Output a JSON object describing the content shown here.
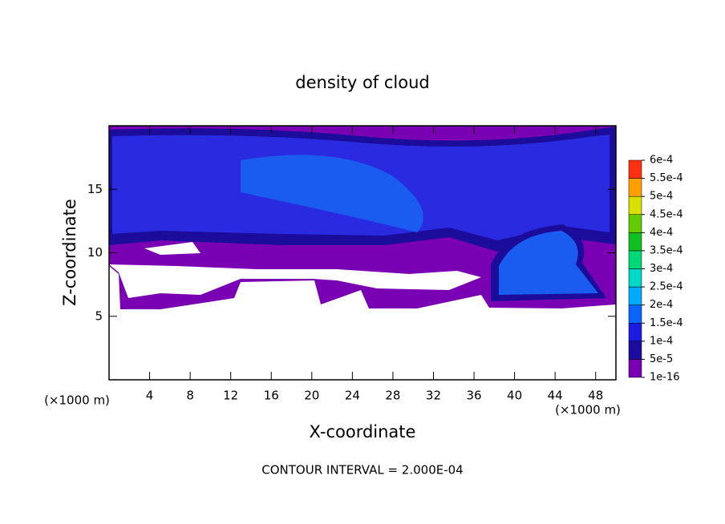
{
  "chart_data": {
    "type": "contour",
    "title": "density of cloud",
    "x_label": "X-coordinate",
    "y_label": "Z-coordinate",
    "x_unit_label": "(×1000 m)",
    "y_unit_label": "(×1000 m)",
    "annotation": "CONTOUR INTERVAL = 2.000E-04",
    "xlim": [
      0,
      50
    ],
    "ylim": [
      0,
      20
    ],
    "xticks": [
      4,
      8,
      12,
      16,
      20,
      24,
      28,
      32,
      36,
      40,
      44,
      48
    ],
    "yticks": [
      5,
      10,
      15
    ],
    "colorbar": {
      "ticks": [
        {
          "value": 1e-16,
          "label": "1e-16"
        },
        {
          "value": 5e-05,
          "label": "5e-5"
        },
        {
          "value": 0.0001,
          "label": "1e-4"
        },
        {
          "value": 0.00015,
          "label": "1.5e-4"
        },
        {
          "value": 0.0002,
          "label": "2e-4"
        },
        {
          "value": 0.00025,
          "label": "2.5e-4"
        },
        {
          "value": 0.0003,
          "label": "3e-4"
        },
        {
          "value": 0.00035,
          "label": "3.5e-4"
        },
        {
          "value": 0.0004,
          "label": "4e-4"
        },
        {
          "value": 0.00045,
          "label": "4.5e-4"
        },
        {
          "value": 0.0005,
          "label": "5e-4"
        },
        {
          "value": 0.00055,
          "label": "5.5e-4"
        },
        {
          "value": 0.0006,
          "label": "6e-4"
        }
      ],
      "colors": [
        "#7a00b4",
        "#1c0c9c",
        "#1a1ae0",
        "#0a64ff",
        "#00aaff",
        "#00d8c8",
        "#00d878",
        "#10c020",
        "#60cc00",
        "#d8e000",
        "#ffa000",
        "#ff3010"
      ]
    }
  }
}
